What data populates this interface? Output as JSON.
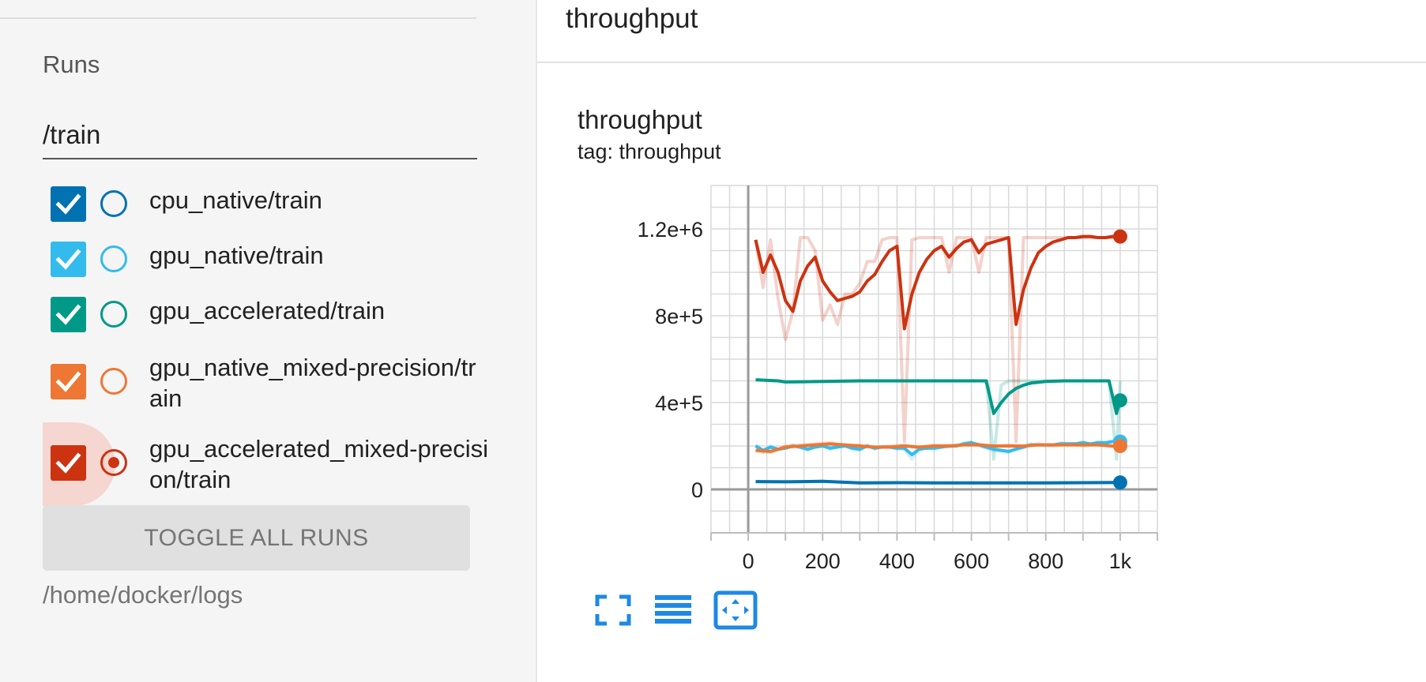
{
  "sidebar": {
    "runs_heading": "Runs",
    "filter_value": "/train",
    "runs": [
      {
        "label": "cpu_native/train",
        "color": "#0072b2",
        "checked": true,
        "selected": false
      },
      {
        "label": "gpu_native/train",
        "color": "#33bbee",
        "checked": true,
        "selected": false
      },
      {
        "label": "gpu_accelerated/train",
        "color": "#009988",
        "checked": true,
        "selected": false
      },
      {
        "label": "gpu_native_mixed-precision/train",
        "color": "#ee7733",
        "checked": true,
        "selected": false
      },
      {
        "label": "gpu_accelerated_mixed-precision/train",
        "color": "#cc3311",
        "checked": true,
        "selected": true
      }
    ],
    "toggle_all_label": "TOGGLE ALL RUNS",
    "logdir": "/home/docker/logs"
  },
  "main": {
    "group_title": "throughput",
    "card": {
      "title": "throughput",
      "tag": "tag: throughput"
    },
    "toolbar": [
      {
        "icon": "fullscreen-icon"
      },
      {
        "icon": "data-table-icon"
      },
      {
        "icon": "fit-domain-icon"
      }
    ]
  },
  "chart_data": {
    "type": "line",
    "title": "throughput",
    "subtitle": "tag: throughput",
    "xlabel": "",
    "ylabel": "",
    "xlim": [
      -100,
      1100
    ],
    "ylim": [
      -200000,
      1400000
    ],
    "x_ticks": [
      0,
      200,
      400,
      600,
      800,
      1000
    ],
    "x_tick_labels": [
      "0",
      "200",
      "400",
      "600",
      "800",
      "1k"
    ],
    "y_ticks": [
      0,
      400000,
      800000,
      1200000
    ],
    "y_tick_labels": [
      "0",
      "4e+5",
      "8e+5",
      "1.2e+6"
    ],
    "grid": true,
    "series": [
      {
        "name": "cpu_native/train",
        "color": "#0072b2",
        "x": [
          20,
          100,
          200,
          300,
          400,
          500,
          600,
          700,
          800,
          900,
          1000
        ],
        "smoothed": [
          36000,
          35000,
          37000,
          30000,
          31000,
          30000,
          30000,
          30000,
          30000,
          31000,
          32000
        ],
        "raw": [
          36000,
          35000,
          37000,
          30000,
          31000,
          30000,
          30000,
          30000,
          30000,
          31000,
          32000
        ]
      },
      {
        "name": "gpu_native/train",
        "color": "#33bbee",
        "x": [
          20,
          40,
          60,
          80,
          100,
          120,
          140,
          160,
          180,
          200,
          220,
          240,
          260,
          280,
          300,
          320,
          340,
          360,
          380,
          400,
          420,
          440,
          460,
          480,
          500,
          520,
          540,
          560,
          580,
          600,
          620,
          640,
          660,
          680,
          700,
          720,
          740,
          760,
          780,
          800,
          820,
          840,
          860,
          880,
          900,
          920,
          940,
          960,
          980,
          1000
        ],
        "smoothed": [
          200000,
          180000,
          195000,
          185000,
          190000,
          200000,
          195000,
          185000,
          195000,
          200000,
          190000,
          195000,
          200000,
          190000,
          185000,
          200000,
          190000,
          195000,
          195000,
          190000,
          190000,
          160000,
          185000,
          190000,
          190000,
          195000,
          200000,
          200000,
          210000,
          215000,
          205000,
          195000,
          185000,
          180000,
          175000,
          185000,
          195000,
          205000,
          205000,
          205000,
          205000,
          210000,
          210000,
          210000,
          215000,
          210000,
          215000,
          215000,
          220000,
          220000
        ],
        "raw": [
          205000,
          170000,
          200000,
          180000,
          195000,
          205000,
          190000,
          180000,
          200000,
          205000,
          185000,
          200000,
          205000,
          185000,
          180000,
          205000,
          185000,
          200000,
          195000,
          185000,
          185000,
          140000,
          190000,
          190000,
          185000,
          200000,
          205000,
          200000,
          215000,
          220000,
          200000,
          190000,
          180000,
          175000,
          170000,
          190000,
          200000,
          210000,
          205000,
          200000,
          205000,
          215000,
          210000,
          210000,
          220000,
          205000,
          220000,
          215000,
          225000,
          225000
        ]
      },
      {
        "name": "gpu_accelerated/train",
        "color": "#009988",
        "x": [
          20,
          80,
          100,
          200,
          300,
          400,
          500,
          600,
          640,
          660,
          680,
          700,
          720,
          740,
          760,
          800,
          850,
          900,
          950,
          970,
          990,
          1000
        ],
        "smoothed": [
          505000,
          500000,
          495000,
          497000,
          500000,
          500000,
          500000,
          500000,
          500000,
          350000,
          400000,
          440000,
          465000,
          480000,
          490000,
          497000,
          500000,
          500000,
          500000,
          500000,
          350000,
          410000
        ],
        "raw": [
          505000,
          500000,
          495000,
          497000,
          500000,
          500000,
          500000,
          500000,
          500000,
          140000,
          480000,
          500000,
          500000,
          500000,
          500000,
          500000,
          500000,
          500000,
          500000,
          500000,
          140000,
          500000
        ]
      },
      {
        "name": "gpu_native_mixed-precision/train",
        "color": "#ee7733",
        "x": [
          20,
          60,
          100,
          140,
          180,
          220,
          260,
          300,
          340,
          380,
          420,
          460,
          500,
          540,
          580,
          620,
          660,
          700,
          740,
          780,
          820,
          860,
          900,
          940,
          980,
          1000
        ],
        "smoothed": [
          180000,
          175000,
          195000,
          200000,
          205000,
          210000,
          205000,
          200000,
          195000,
          195000,
          200000,
          195000,
          200000,
          200000,
          205000,
          205000,
          200000,
          200000,
          200000,
          205000,
          205000,
          205000,
          205000,
          205000,
          200000,
          200000
        ],
        "raw": [
          175000,
          170000,
          200000,
          205000,
          210000,
          215000,
          200000,
          205000,
          190000,
          200000,
          205000,
          190000,
          205000,
          195000,
          210000,
          210000,
          195000,
          205000,
          195000,
          210000,
          200000,
          210000,
          200000,
          210000,
          195000,
          195000
        ]
      },
      {
        "name": "gpu_accelerated_mixed-precision/train",
        "color": "#cc3311",
        "x": [
          20,
          40,
          60,
          80,
          100,
          120,
          140,
          160,
          180,
          200,
          220,
          240,
          260,
          280,
          300,
          320,
          340,
          360,
          380,
          400,
          420,
          440,
          460,
          480,
          500,
          520,
          540,
          560,
          580,
          600,
          620,
          640,
          660,
          680,
          700,
          720,
          740,
          760,
          780,
          800,
          820,
          840,
          860,
          880,
          900,
          920,
          940,
          960,
          980,
          1000
        ],
        "smoothed": [
          1150000,
          1000000,
          1080000,
          1000000,
          870000,
          820000,
          960000,
          1030000,
          1070000,
          960000,
          910000,
          870000,
          880000,
          890000,
          910000,
          960000,
          990000,
          1050000,
          1100000,
          1120000,
          740000,
          900000,
          1000000,
          1060000,
          1100000,
          1120000,
          1070000,
          1110000,
          1140000,
          1150000,
          1090000,
          1130000,
          1140000,
          1150000,
          1160000,
          760000,
          920000,
          1020000,
          1090000,
          1120000,
          1140000,
          1150000,
          1160000,
          1160000,
          1165000,
          1165000,
          1160000,
          1160000,
          1165000,
          1165000
        ],
        "raw": [
          1150000,
          930000,
          1150000,
          880000,
          690000,
          820000,
          1160000,
          1160000,
          1100000,
          780000,
          850000,
          760000,
          900000,
          900000,
          950000,
          1050000,
          1050000,
          1150000,
          1160000,
          1160000,
          220000,
          1150000,
          1160000,
          1160000,
          1160000,
          1160000,
          1000000,
          1160000,
          1160000,
          1160000,
          1000000,
          1160000,
          1160000,
          1160000,
          1160000,
          220000,
          1160000,
          1160000,
          1160000,
          1160000,
          1160000,
          1160000,
          1160000,
          1160000,
          1160000,
          1160000,
          1160000,
          1160000,
          1160000,
          1160000
        ]
      }
    ]
  }
}
